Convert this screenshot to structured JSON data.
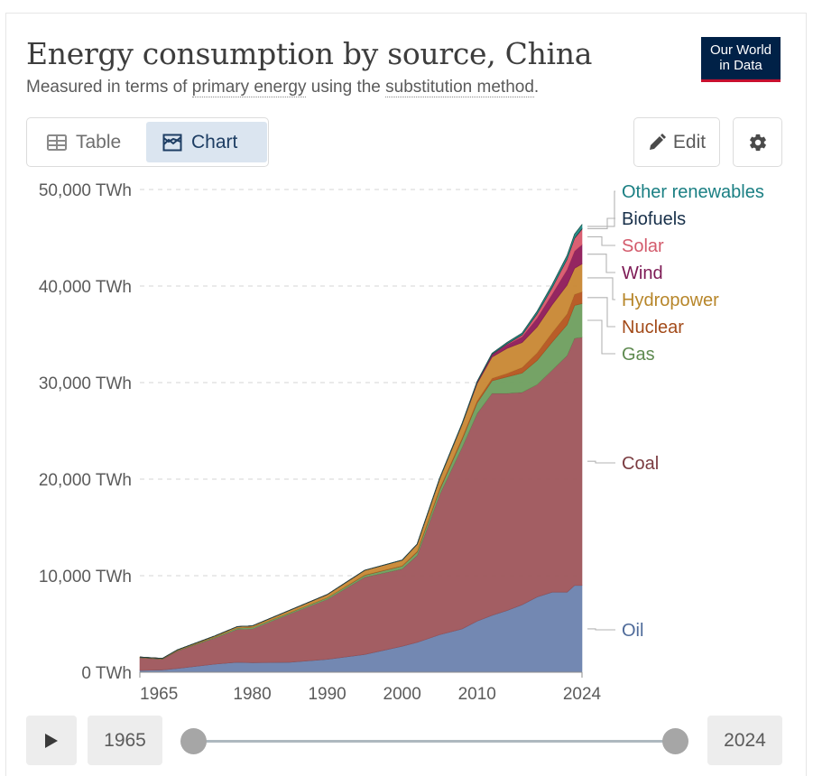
{
  "header": {
    "title": "Energy consumption by source, China",
    "subtitle_prefix": "Measured in terms of ",
    "subtitle_link1": "primary energy",
    "subtitle_middle": " using the ",
    "subtitle_link2": "substitution method",
    "subtitle_suffix": ".",
    "logo_line1": "Our World",
    "logo_line2": "in Data"
  },
  "controls": {
    "tab_table": "Table",
    "tab_chart": "Chart",
    "edit_label": "Edit",
    "gear_icon": "gear-icon"
  },
  "timeline": {
    "start_year": "1965",
    "end_year": "2024",
    "range_start": 1965,
    "range_end": 2024
  },
  "colors": {
    "Oil": "#6b82ae",
    "Coal": "#9e555b",
    "Gas": "#6e9e5e",
    "Nuclear": "#b5541e",
    "Hydropower": "#c88733",
    "Wind": "#8e1a59",
    "Solar": "#d8576b",
    "Biofuels": "#1a2a3a",
    "Other renewables": "#1c8a83"
  },
  "chart_data": {
    "type": "area",
    "stacked": true,
    "title": "Energy consumption by source, China",
    "subtitle": "Measured in terms of primary energy using the substitution method.",
    "ylim": [
      0,
      50000
    ],
    "y_ticks": [
      0,
      10000,
      20000,
      30000,
      40000,
      50000
    ],
    "y_tick_labels": [
      "0 TWh",
      "10,000 TWh",
      "20,000 TWh",
      "30,000 TWh",
      "40,000 TWh",
      "50,000 TWh"
    ],
    "x_ticks": [
      1965,
      1980,
      1990,
      2000,
      2010,
      2024
    ],
    "x_tick_labels": [
      "1965",
      "1980",
      "1990",
      "2000",
      "2010",
      "2024"
    ],
    "x": [
      1965,
      1968,
      1970,
      1975,
      1978,
      1980,
      1985,
      1990,
      1995,
      2000,
      2002,
      2005,
      2008,
      2010,
      2012,
      2014,
      2016,
      2018,
      2020,
      2022,
      2023,
      2024
    ],
    "series": [
      {
        "name": "Oil",
        "values": [
          200,
          250,
          400,
          850,
          1050,
          1000,
          1050,
          1350,
          1850,
          2700,
          3100,
          3900,
          4500,
          5300,
          5900,
          6400,
          7000,
          7800,
          8300,
          8300,
          9000,
          9000
        ]
      },
      {
        "name": "Coal",
        "values": [
          1300,
          1100,
          1800,
          2700,
          3400,
          3500,
          5000,
          6200,
          8000,
          8000,
          9000,
          14500,
          18800,
          21500,
          23000,
          22500,
          22000,
          22000,
          23000,
          24500,
          25600,
          25700
        ]
      },
      {
        "name": "Gas",
        "values": [
          30,
          30,
          40,
          100,
          150,
          150,
          130,
          170,
          200,
          300,
          350,
          500,
          800,
          1100,
          1300,
          1700,
          2000,
          2500,
          2900,
          3200,
          3400,
          3500
        ]
      },
      {
        "name": "Nuclear",
        "values": [
          0,
          0,
          0,
          0,
          0,
          0,
          0,
          0,
          30,
          50,
          70,
          140,
          180,
          200,
          250,
          350,
          560,
          780,
          960,
          1100,
          1140,
          1200
        ]
      },
      {
        "name": "Hydropower",
        "values": [
          40,
          50,
          80,
          120,
          130,
          150,
          240,
          330,
          480,
          560,
          740,
          1000,
          1400,
          1800,
          2200,
          2600,
          2600,
          2700,
          2900,
          3000,
          2700,
          2900
        ]
      },
      {
        "name": "Wind",
        "values": [
          0,
          0,
          0,
          0,
          0,
          0,
          0,
          0,
          0,
          0,
          0,
          5,
          35,
          110,
          250,
          380,
          600,
          900,
          1100,
          1600,
          1800,
          2000
        ]
      },
      {
        "name": "Solar",
        "values": [
          0,
          0,
          0,
          0,
          0,
          0,
          0,
          0,
          0,
          0,
          0,
          0,
          0,
          2,
          15,
          70,
          170,
          440,
          650,
          1070,
          1300,
          1600
        ]
      },
      {
        "name": "Biofuels",
        "values": [
          0,
          0,
          0,
          0,
          0,
          0,
          0,
          0,
          0,
          5,
          10,
          30,
          35,
          40,
          45,
          50,
          55,
          60,
          65,
          70,
          75,
          80
        ]
      },
      {
        "name": "Other renewables",
        "values": [
          0,
          0,
          0,
          0,
          0,
          0,
          0,
          0,
          5,
          10,
          15,
          25,
          40,
          60,
          80,
          110,
          150,
          200,
          260,
          320,
          360,
          400
        ]
      }
    ],
    "legend_order": [
      "Other renewables",
      "Biofuels",
      "Solar",
      "Wind",
      "Hydropower",
      "Nuclear",
      "Gas",
      "Coal",
      "Oil"
    ]
  }
}
